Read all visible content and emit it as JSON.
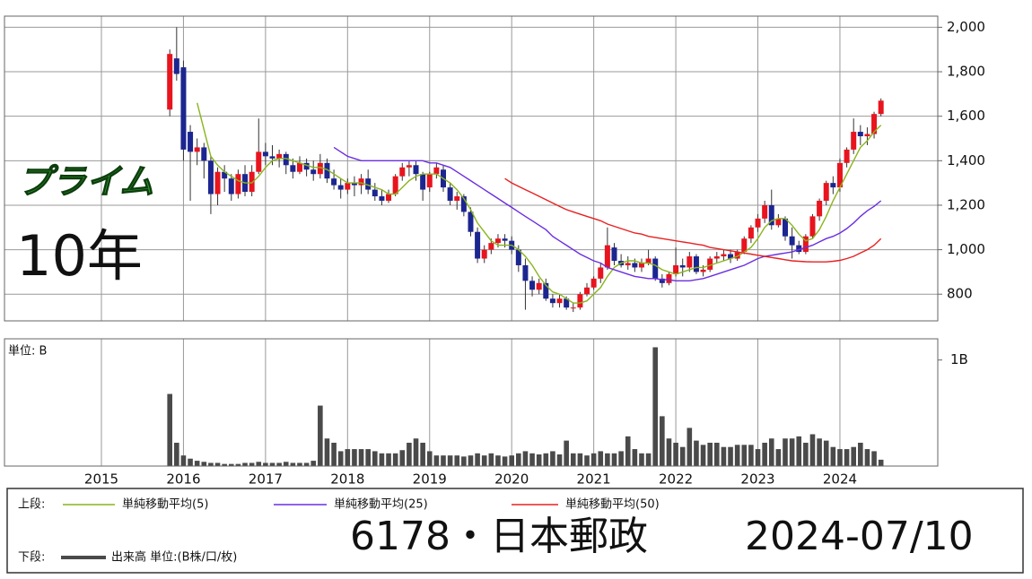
{
  "chart_data": {
    "type": "candlestick",
    "title": "6178・日本郵政",
    "date": "2024-07/10",
    "market": "プライム",
    "period": "10年",
    "categories": [
      "2015",
      null,
      null,
      null,
      null,
      null,
      null,
      null,
      null,
      null,
      null,
      null,
      "2016",
      null,
      null,
      null,
      null,
      null,
      null,
      null,
      null,
      null,
      null,
      null,
      "2017",
      null,
      null,
      null,
      null,
      null,
      null,
      null,
      null,
      null,
      null,
      null,
      "2018",
      null,
      null,
      null,
      null,
      null,
      null,
      null,
      null,
      null,
      null,
      null,
      "2019",
      null,
      null,
      null,
      null,
      null,
      null,
      null,
      null,
      null,
      null,
      null,
      "2020",
      null,
      null,
      null,
      null,
      null,
      null,
      null,
      null,
      null,
      null,
      null,
      "2021",
      null,
      null,
      null,
      null,
      null,
      null,
      null,
      null,
      null,
      null,
      null,
      "2022",
      null,
      null,
      null,
      null,
      null,
      null,
      null,
      null,
      null,
      null,
      null,
      "2023",
      null,
      null,
      null,
      null,
      null,
      null,
      null,
      null,
      null,
      null,
      null,
      "2024",
      null,
      null,
      null,
      null,
      null,
      null
    ],
    "candles": {
      "up_color": "#e8141e",
      "down_color": "#1c2690",
      "wick_color": "#333333",
      "open": [
        null,
        null,
        null,
        null,
        null,
        null,
        null,
        null,
        null,
        null,
        1630,
        1860,
        1820,
        1530,
        1440,
        1460,
        1400,
        1250,
        1350,
        1320,
        1250,
        1340,
        1260,
        1350,
        1440,
        1420,
        1410,
        1430,
        1380,
        1350,
        1390,
        1360,
        1340,
        1390,
        1320,
        1290,
        1270,
        1300,
        1290,
        1320,
        1270,
        1240,
        1220,
        1250,
        1330,
        1370,
        1380,
        1340,
        1280,
        1340,
        1360,
        1280,
        1220,
        1240,
        1170,
        1080,
        960,
        1000,
        1030,
        1050,
        1040,
        1000,
        930,
        860,
        820,
        850,
        780,
        760,
        780,
        740,
        740,
        800,
        830,
        870,
        920,
        1010,
        950,
        930,
        940,
        920,
        940,
        960,
        870,
        850,
        890,
        930,
        920,
        970,
        900,
        910,
        960,
        970,
        980,
        960,
        990,
        1050,
        1100,
        1140,
        1200,
        1110,
        1140,
        1060,
        1020,
        990,
        1060,
        1150,
        1220,
        1300,
        1280,
        1390,
        1450,
        1530,
        1510,
        1520,
        1610
      ],
      "high": [
        null,
        null,
        null,
        null,
        null,
        null,
        null,
        null,
        null,
        null,
        1900,
        2000,
        1850,
        1560,
        1500,
        1480,
        1420,
        1370,
        1380,
        1340,
        1360,
        1380,
        1380,
        1590,
        1480,
        1470,
        1450,
        1440,
        1410,
        1420,
        1410,
        1400,
        1430,
        1410,
        1360,
        1320,
        1320,
        1330,
        1340,
        1360,
        1300,
        1270,
        1270,
        1340,
        1390,
        1400,
        1400,
        1350,
        1350,
        1390,
        1380,
        1300,
        1260,
        1250,
        1190,
        1100,
        1020,
        1050,
        1070,
        1070,
        1060,
        1020,
        960,
        880,
        870,
        870,
        800,
        800,
        790,
        760,
        810,
        850,
        880,
        940,
        1100,
        1030,
        980,
        970,
        960,
        960,
        1000,
        970,
        890,
        900,
        1010,
        960,
        990,
        980,
        930,
        970,
        990,
        1000,
        1000,
        1000,
        1060,
        1110,
        1160,
        1220,
        1270,
        1160,
        1150,
        1100,
        1040,
        1070,
        1160,
        1230,
        1310,
        1330,
        1410,
        1460,
        1590,
        1560,
        1550,
        1620,
        1680
      ],
      "low": [
        null,
        null,
        null,
        null,
        null,
        null,
        null,
        null,
        null,
        null,
        1600,
        1760,
        1400,
        1220,
        1380,
        1320,
        1160,
        1200,
        1260,
        1220,
        1230,
        1240,
        1240,
        1340,
        1380,
        1380,
        1370,
        1340,
        1320,
        1340,
        1330,
        1310,
        1320,
        1300,
        1270,
        1230,
        1250,
        1240,
        1250,
        1250,
        1220,
        1200,
        1210,
        1240,
        1310,
        1330,
        1310,
        1220,
        1260,
        1320,
        1260,
        1200,
        1180,
        1150,
        1060,
        940,
        940,
        980,
        1010,
        1010,
        980,
        900,
        730,
        790,
        800,
        770,
        740,
        740,
        730,
        720,
        730,
        790,
        820,
        850,
        910,
        930,
        920,
        910,
        900,
        900,
        930,
        860,
        830,
        840,
        880,
        880,
        900,
        890,
        880,
        900,
        940,
        950,
        940,
        950,
        980,
        1030,
        1080,
        1120,
        1090,
        1100,
        1040,
        960,
        980,
        980,
        1050,
        1130,
        1200,
        1250,
        1260,
        1370,
        1430,
        1470,
        1470,
        1500,
        1600
      ],
      "close": [
        null,
        null,
        null,
        null,
        null,
        null,
        null,
        null,
        null,
        null,
        1880,
        1790,
        1450,
        1440,
        1460,
        1400,
        1250,
        1350,
        1320,
        1250,
        1340,
        1260,
        1350,
        1440,
        1420,
        1410,
        1430,
        1380,
        1350,
        1390,
        1360,
        1340,
        1390,
        1320,
        1290,
        1270,
        1300,
        1290,
        1320,
        1270,
        1240,
        1220,
        1250,
        1330,
        1370,
        1380,
        1340,
        1270,
        1340,
        1370,
        1280,
        1220,
        1240,
        1170,
        1080,
        960,
        1000,
        1030,
        1050,
        1040,
        1000,
        930,
        860,
        820,
        850,
        780,
        760,
        780,
        740,
        740,
        800,
        830,
        870,
        920,
        1020,
        950,
        930,
        940,
        920,
        940,
        960,
        870,
        850,
        890,
        930,
        920,
        970,
        900,
        910,
        960,
        970,
        980,
        960,
        990,
        1050,
        1100,
        1140,
        1200,
        1110,
        1140,
        1060,
        1020,
        990,
        1060,
        1150,
        1220,
        1300,
        1280,
        1390,
        1450,
        1530,
        1510,
        1520,
        1610,
        1670
      ]
    },
    "ylim": [
      680,
      2050
    ],
    "yticks": [
      800,
      {
        "value": 1000,
        "label": "1,000"
      },
      {
        "value": 1200,
        "label": "1,200"
      },
      {
        "value": 1400,
        "label": "1,400"
      },
      {
        "value": 1600,
        "label": "1,600"
      },
      {
        "value": 1800,
        "label": "1,800"
      },
      {
        "value": 2000,
        "label": "2,000"
      }
    ],
    "grid": true,
    "legend": {
      "upper": "上段:",
      "lower": "下段:"
    },
    "moving_averages": [
      {
        "name": "単純移動平均(5)",
        "color": "#8ab41e",
        "values": [
          null,
          null,
          null,
          null,
          null,
          null,
          null,
          null,
          null,
          null,
          null,
          null,
          null,
          null,
          1660,
          1540,
          1420,
          1380,
          1350,
          1330,
          1310,
          1300,
          1300,
          1330,
          1370,
          1400,
          1410,
          1410,
          1400,
          1390,
          1380,
          1370,
          1370,
          1360,
          1340,
          1320,
          1300,
          1300,
          1300,
          1290,
          1280,
          1270,
          1250,
          1250,
          1280,
          1310,
          1330,
          1340,
          1340,
          1340,
          1320,
          1300,
          1270,
          1230,
          1180,
          1120,
          1080,
          1040,
          1020,
          1020,
          1020,
          1000,
          970,
          930,
          880,
          840,
          810,
          800,
          780,
          760,
          760,
          770,
          800,
          830,
          880,
          920,
          940,
          950,
          950,
          940,
          940,
          930,
          910,
          900,
          890,
          900,
          910,
          920,
          920,
          930,
          940,
          950,
          960,
          970,
          990,
          1010,
          1050,
          1100,
          1130,
          1140,
          1140,
          1110,
          1070,
          1040,
          1050,
          1090,
          1150,
          1220,
          1280,
          1340,
          1400,
          1460,
          1490,
          1530,
          1560
        ]
      },
      {
        "name": "単純移動平均(25)",
        "color": "#6a2ee0",
        "values": [
          null,
          null,
          null,
          null,
          null,
          null,
          null,
          null,
          null,
          null,
          null,
          null,
          null,
          null,
          null,
          null,
          null,
          null,
          null,
          null,
          null,
          null,
          null,
          null,
          null,
          null,
          null,
          null,
          null,
          null,
          null,
          null,
          null,
          null,
          1460,
          1440,
          1420,
          1410,
          1400,
          1400,
          1400,
          1400,
          1400,
          1400,
          1400,
          1400,
          1400,
          1400,
          1390,
          1390,
          1380,
          1370,
          1350,
          1330,
          1310,
          1290,
          1270,
          1250,
          1230,
          1210,
          1190,
          1170,
          1150,
          1130,
          1110,
          1090,
          1060,
          1040,
          1020,
          1000,
          980,
          965,
          950,
          940,
          920,
          910,
          900,
          890,
          880,
          875,
          870,
          870,
          865,
          865,
          860,
          860,
          860,
          865,
          870,
          880,
          890,
          900,
          910,
          920,
          930,
          945,
          960,
          970,
          975,
          980,
          985,
          990,
          1000,
          1010,
          1020,
          1035,
          1050,
          1060,
          1075,
          1095,
          1120,
          1150,
          1175,
          1195,
          1220
        ]
      },
      {
        "name": "単純移動平均(50)",
        "color": "#e82020",
        "values": [
          null,
          null,
          null,
          null,
          null,
          null,
          null,
          null,
          null,
          null,
          null,
          null,
          null,
          null,
          null,
          null,
          null,
          null,
          null,
          null,
          null,
          null,
          null,
          null,
          null,
          null,
          null,
          null,
          null,
          null,
          null,
          null,
          null,
          null,
          null,
          null,
          null,
          null,
          null,
          null,
          null,
          null,
          null,
          null,
          null,
          null,
          null,
          null,
          null,
          null,
          null,
          null,
          null,
          null,
          null,
          null,
          null,
          null,
          null,
          1320,
          1300,
          1285,
          1270,
          1255,
          1240,
          1225,
          1210,
          1195,
          1180,
          1170,
          1160,
          1150,
          1140,
          1130,
          1115,
          1105,
          1095,
          1085,
          1075,
          1070,
          1060,
          1055,
          1050,
          1045,
          1040,
          1035,
          1030,
          1025,
          1020,
          1010,
          1005,
          1000,
          995,
          990,
          985,
          980,
          975,
          970,
          965,
          960,
          955,
          950,
          948,
          946,
          945,
          945,
          945,
          948,
          952,
          960,
          970,
          985,
          1000,
          1020,
          1050
        ]
      }
    ],
    "volume": {
      "name": "出来高 単位:(B株/口/枚)",
      "unit_label": "単位: B",
      "color": "#4a4a4a",
      "ylim": [
        0,
        1.2
      ],
      "yticks": [
        {
          "value": 1,
          "label": "1B"
        }
      ],
      "values": [
        null,
        null,
        null,
        null,
        null,
        null,
        null,
        null,
        null,
        null,
        0.68,
        0.22,
        0.1,
        0.07,
        0.05,
        0.04,
        0.03,
        0.03,
        0.02,
        0.02,
        0.02,
        0.03,
        0.03,
        0.04,
        0.03,
        0.03,
        0.03,
        0.04,
        0.03,
        0.03,
        0.03,
        0.05,
        0.57,
        0.26,
        0.22,
        0.14,
        0.16,
        0.16,
        0.16,
        0.16,
        0.14,
        0.12,
        0.12,
        0.12,
        0.15,
        0.22,
        0.26,
        0.22,
        0.14,
        0.1,
        0.1,
        0.1,
        0.1,
        0.09,
        0.1,
        0.12,
        0.1,
        0.12,
        0.1,
        0.09,
        0.1,
        0.12,
        0.14,
        0.12,
        0.11,
        0.12,
        0.14,
        0.11,
        0.24,
        0.12,
        0.12,
        0.1,
        0.12,
        0.14,
        0.12,
        0.12,
        0.14,
        0.28,
        0.16,
        0.12,
        0.12,
        1.12,
        0.47,
        0.26,
        0.22,
        0.18,
        0.36,
        0.24,
        0.2,
        0.22,
        0.22,
        0.18,
        0.18,
        0.2,
        0.2,
        0.2,
        0.16,
        0.22,
        0.26,
        0.16,
        0.26,
        0.26,
        0.28,
        0.22,
        0.3,
        0.26,
        0.24,
        0.18,
        0.16,
        0.16,
        0.18,
        0.22,
        0.16,
        0.14,
        0.06
      ]
    }
  }
}
